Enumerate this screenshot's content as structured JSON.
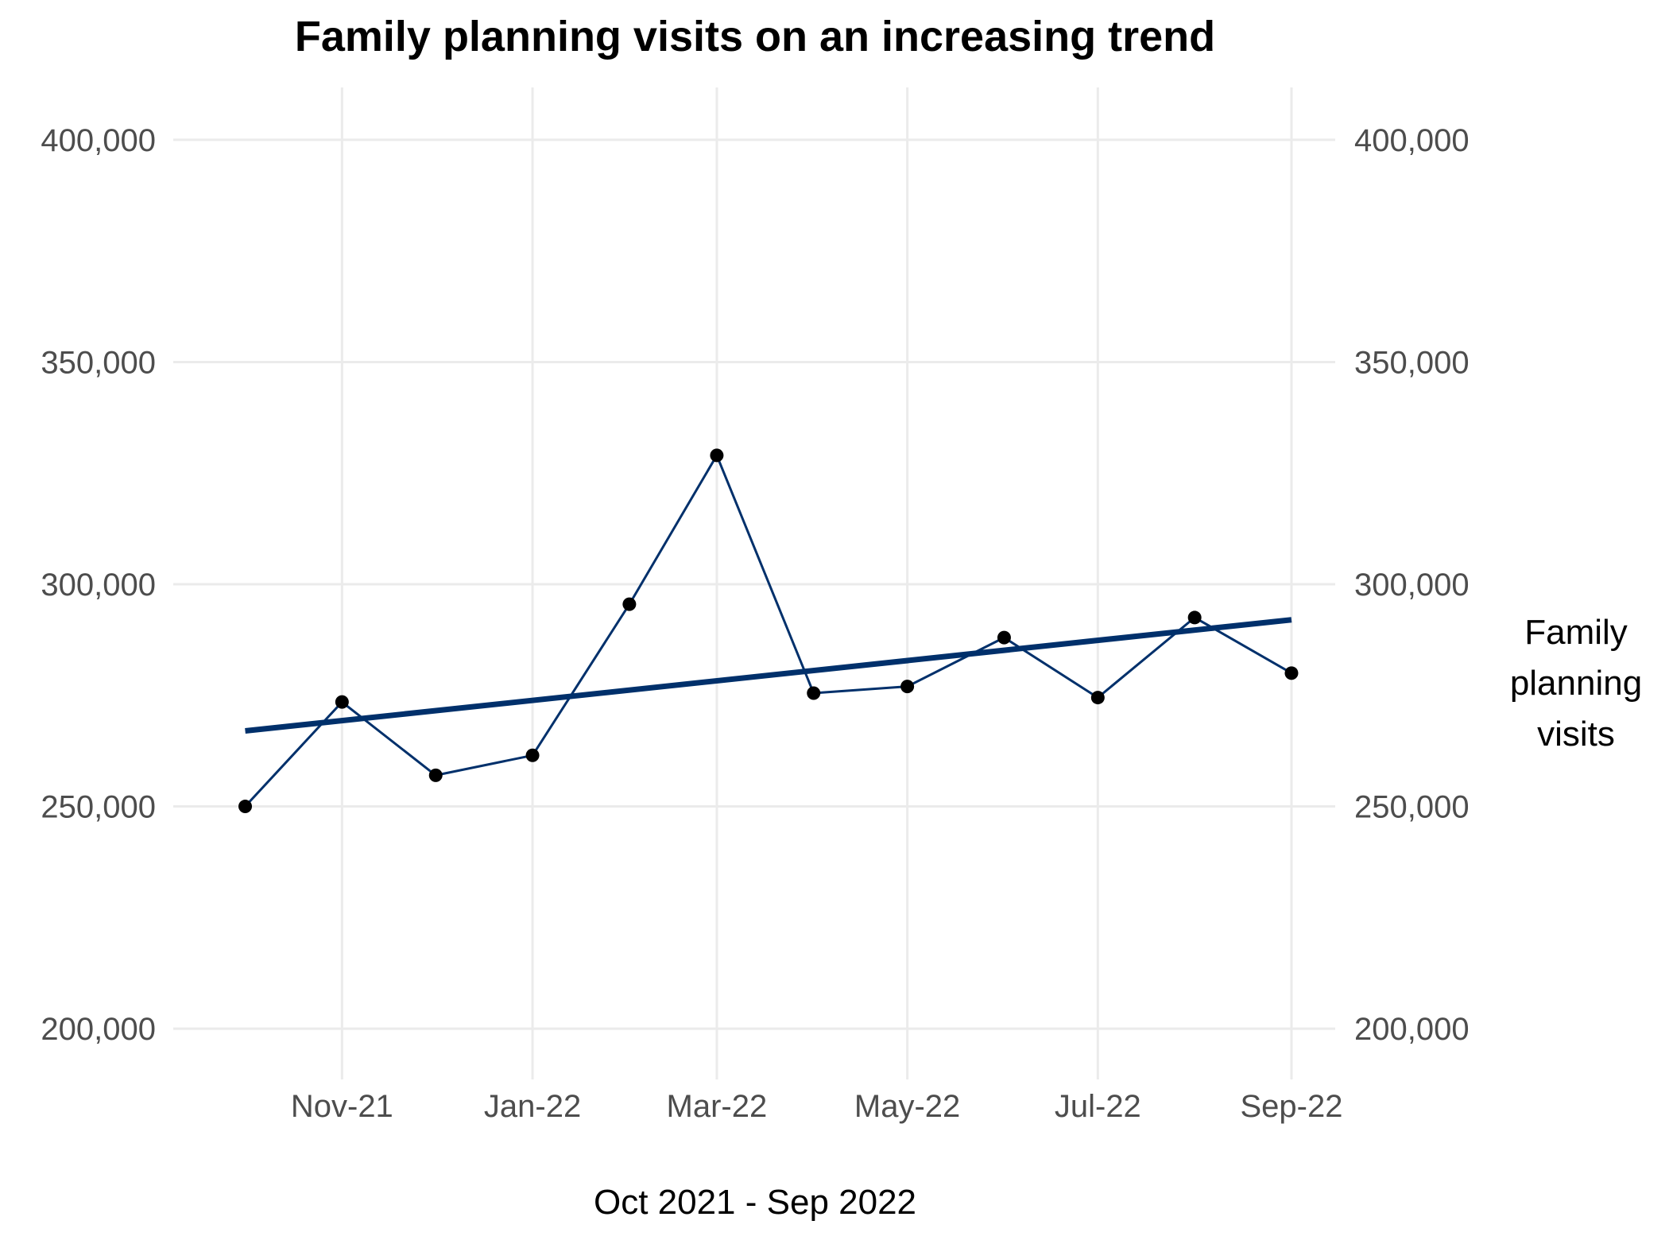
{
  "chart_data": {
    "type": "line",
    "title": "Family planning visits on an increasing trend",
    "xlabel": "Oct 2021 - Sep 2022",
    "ylabel_right": [
      "Family",
      "planning",
      "visits"
    ],
    "x": [
      "2021-10-01",
      "2021-11-01",
      "2021-12-01",
      "2022-01-01",
      "2022-02-01",
      "2022-03-01",
      "2022-04-01",
      "2022-05-01",
      "2022-06-01",
      "2022-07-01",
      "2022-08-01",
      "2022-09-01"
    ],
    "x_tick_labels": [
      "Nov-21",
      "Jan-22",
      "Mar-22",
      "May-22",
      "Jul-22",
      "Sep-22"
    ],
    "x_tick_dates": [
      "2021-11-01",
      "2022-01-01",
      "2022-03-01",
      "2022-05-01",
      "2022-07-01",
      "2022-09-01"
    ],
    "ylim": [
      190000,
      410000
    ],
    "y_ticks": [
      200000,
      250000,
      300000,
      350000,
      400000
    ],
    "y_tick_labels": [
      "200,000",
      "250,000",
      "300,000",
      "350,000",
      "400,000"
    ],
    "grid": true,
    "series": [
      {
        "values": [
          250000,
          273500,
          257000,
          261500,
          295500,
          329000,
          275500,
          277000,
          288000,
          274500,
          292500,
          280000
        ],
        "color": "#00306b",
        "markers": true,
        "marker_color": "#000000"
      }
    ],
    "trendline": {
      "start": {
        "x": "2021-10-01",
        "y": 267000
      },
      "end": {
        "x": "2022-09-01",
        "y": 292000
      },
      "color": "#00306b"
    }
  }
}
